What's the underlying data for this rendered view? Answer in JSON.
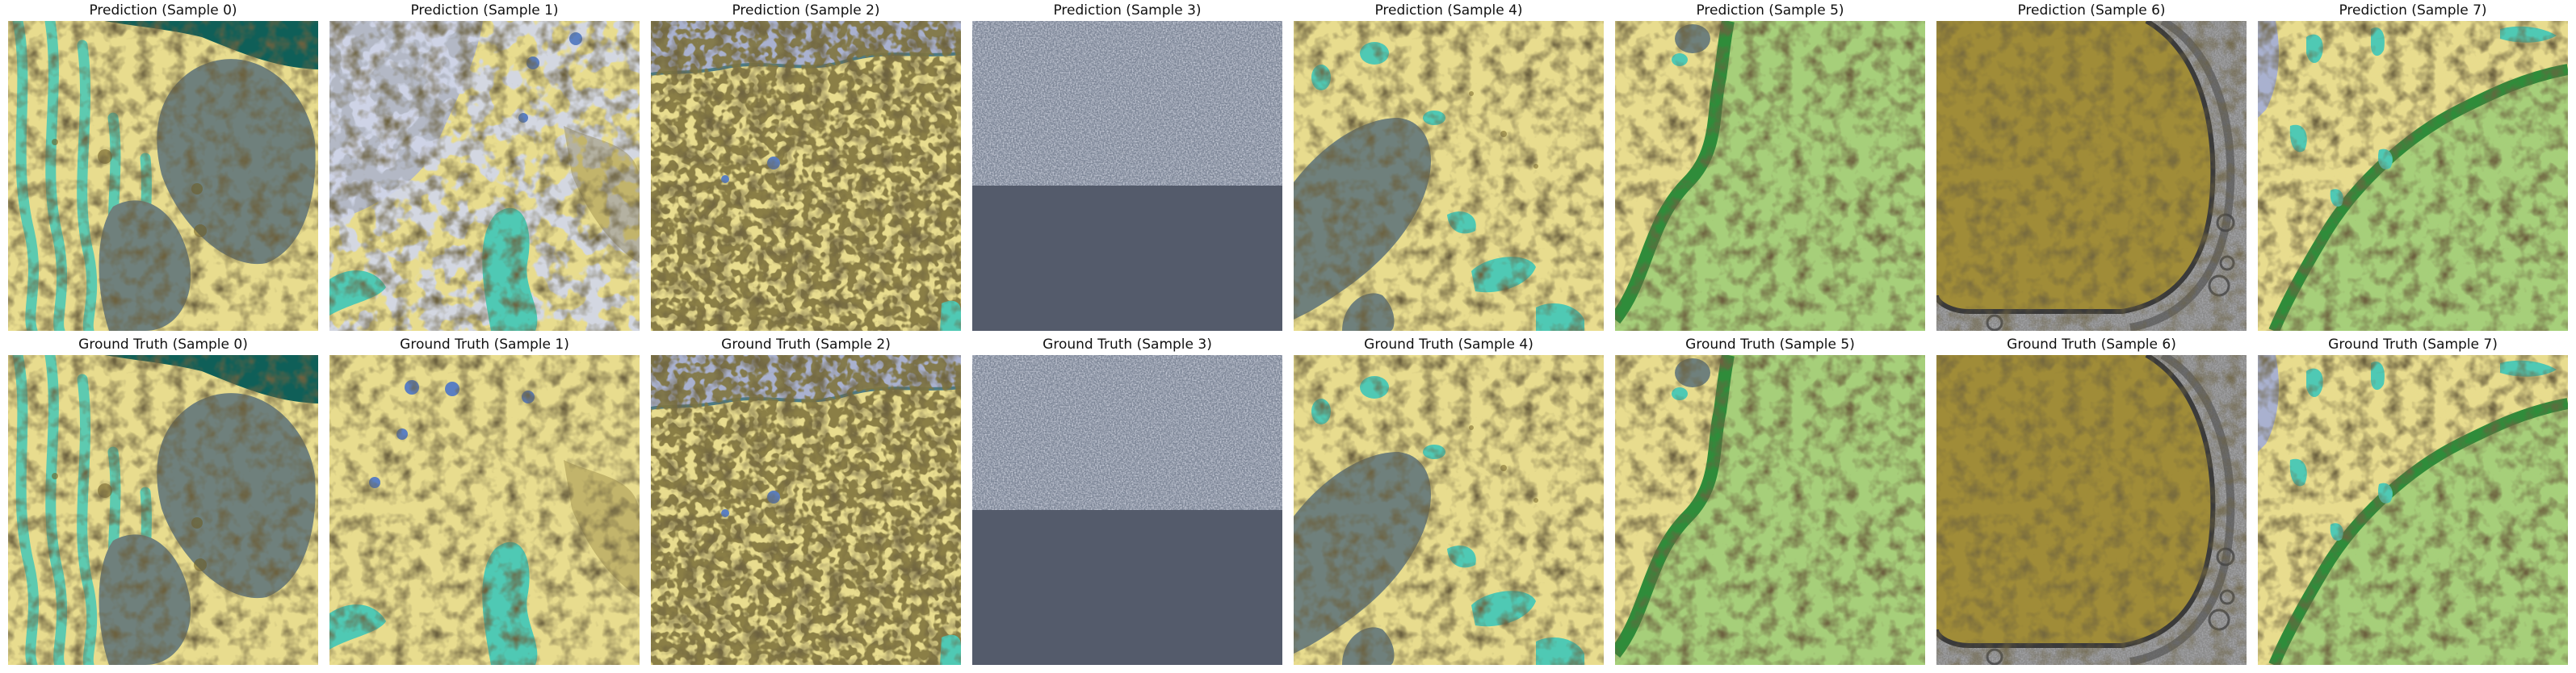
{
  "figure": {
    "rows": [
      {
        "row": "prediction",
        "titles": [
          "Prediction (Sample 0)",
          "Prediction (Sample 1)",
          "Prediction (Sample 2)",
          "Prediction (Sample 3)",
          "Prediction (Sample 4)",
          "Prediction (Sample 5)",
          "Prediction (Sample 6)",
          "Prediction (Sample 7)"
        ]
      },
      {
        "row": "ground-truth",
        "titles": [
          "Ground Truth (Sample 0)",
          "Ground Truth (Sample 1)",
          "Ground Truth (Sample 2)",
          "Ground Truth (Sample 3)",
          "Ground Truth (Sample 4)",
          "Ground Truth (Sample 5)",
          "Ground Truth (Sample 6)",
          "Ground Truth (Sample 7)"
        ]
      }
    ],
    "colors": {
      "cytoplasm_yellow": "#e8dc8e",
      "mitochondria_grey": "#6f807c",
      "vesicle_teal": "#4fc9b4",
      "nucleus_green": "#a6cf7a",
      "membrane_green": "#2f8c3a",
      "nucleus_olive": "#a08c38",
      "background_slate": "#545b6b",
      "noise_grey": "#7e8798",
      "lavender": "#a9b1cf",
      "blue_dot": "#5a7fc2",
      "em_grey": "#8a8a8a"
    }
  }
}
